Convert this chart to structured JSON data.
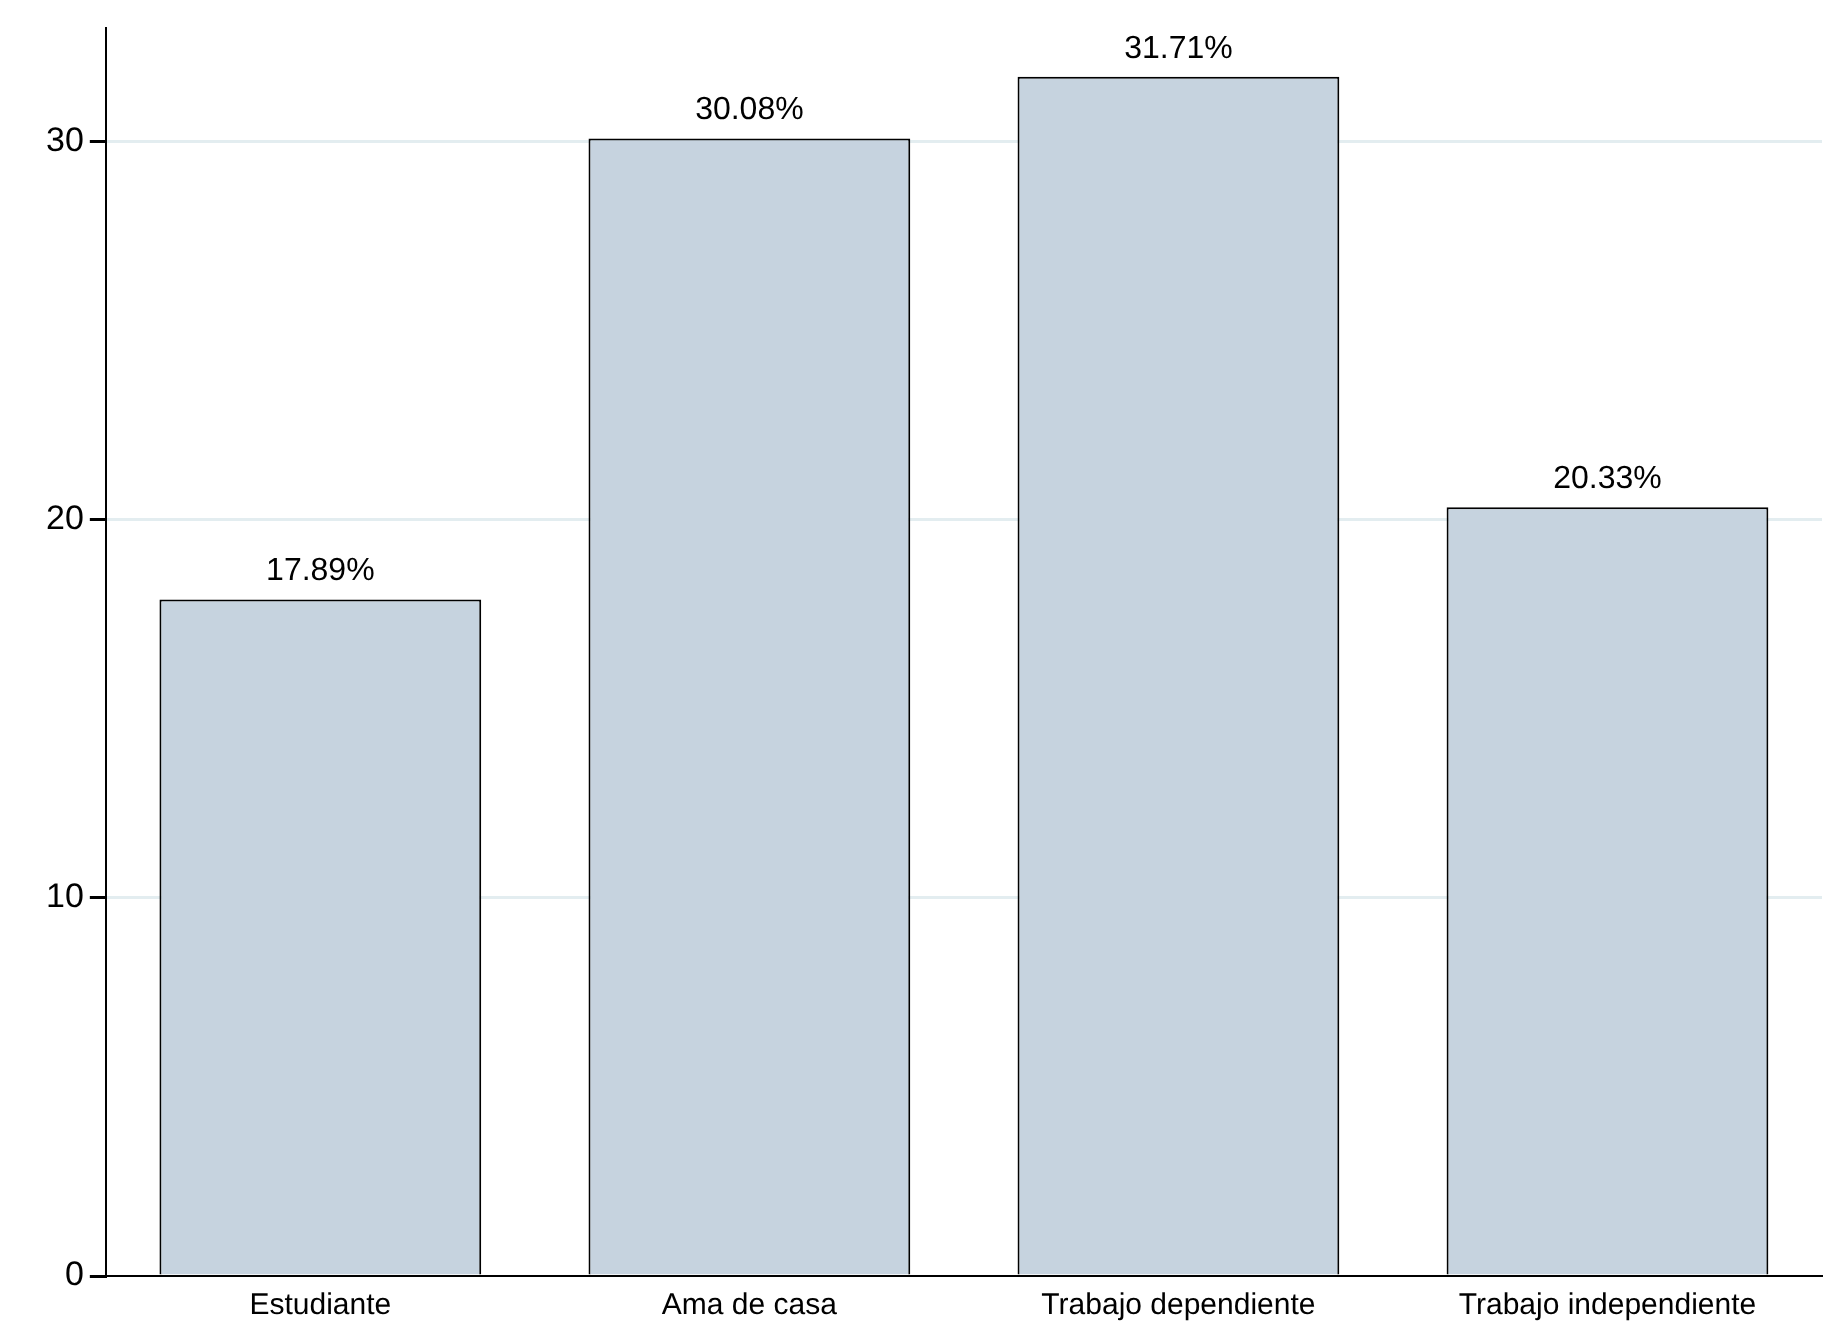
{
  "chart_data": {
    "type": "bar",
    "categories": [
      "Estudiante",
      "Ama de casa",
      "Trabajo dependiente",
      "Trabajo independiente"
    ],
    "values": [
      17.89,
      30.08,
      31.71,
      20.33
    ],
    "value_labels": [
      "17.89%",
      "30.08%",
      "31.71%",
      "20.33%"
    ],
    "color": "#c6d3df",
    "ylim": [
      0,
      33
    ],
    "yticks": [
      0,
      10,
      20,
      30
    ],
    "grid": "y",
    "legend": false
  }
}
